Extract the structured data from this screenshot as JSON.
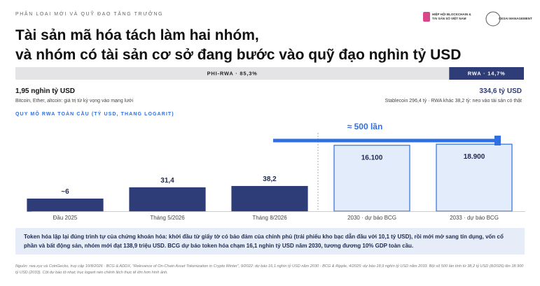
{
  "header": {
    "kicker": "PHÂN LOẠI MỚI VÀ QUỸ ĐẠO TĂNG TRƯỞNG",
    "logos": [
      "HIỆP HỘI BLOCKCHAIN & TÀI SẢN SỐ VIỆT NAM",
      "CESAI MANAGEMENT"
    ],
    "title_lines": [
      "Tài sản mã hóa tách làm hai nhóm,",
      "và nhóm có tài sản cơ sở đang bước vào quỹ đạo nghìn tỷ USD"
    ]
  },
  "share_bar": {
    "segments": [
      {
        "label": "PHI-RWA · 85,3%",
        "value": 85.3,
        "color": "#e4e4e6"
      },
      {
        "label": "RWA · 14,7%",
        "value": 14.7,
        "color": "#2e3d78"
      }
    ]
  },
  "left_stat": {
    "value": "1,95 nghìn tỷ USD",
    "note": "Bitcoin, Ether, altcoin: giá trị từ kỳ vọng vào mạng lưới"
  },
  "right_stat": {
    "value": "334,6 tỷ USD",
    "note": "Stablecoin 296,4 tỷ · RWA khác 38,2 tỷ: neo vào tài sản có thật"
  },
  "chart_data": {
    "type": "bar",
    "title": "QUY MÔ RWA TOÀN CẦU (TỶ USD, THANG LOGARIT)",
    "categories": [
      "Đầu 2025",
      "Tháng 5/2026",
      "Tháng 8/2026",
      "2030 · dự báo BCG",
      "2033 · dự báo BCG"
    ],
    "values": [
      6,
      31.4,
      38.2,
      16100,
      18900
    ],
    "value_labels": [
      "~6",
      "31,4",
      "38,2",
      "16.100",
      "18.900"
    ],
    "colors": [
      "#2e3d78",
      "#2e3d78",
      "#2e3d78",
      "#e3ecfb",
      "#e3ecfb"
    ],
    "edge_colors": [
      "#2e3d78",
      "#2e3d78",
      "#2e3d78",
      "#2f6fe0",
      "#2f6fe0"
    ],
    "log_scale": true,
    "ylim": [
      1,
      100000
    ],
    "annotation": "≈ 500 lần",
    "annotation_color": "#2f6fe0"
  },
  "callout": "Token hóa lặp lại đúng trình tự của chứng khoán hóa: khởi đầu từ giấy tờ có bảo đảm của chính phủ (trái phiếu kho bạc dẫn đầu với 10,1 tỷ USD), rồi mới mở sang tín dụng, vốn cổ phần và bất động sản, nhóm mới đạt 138,9 triệu USD. BCG dự báo token hóa chạm 16,1 nghìn tỷ USD năm 2030, tương đương 10% GDP toàn cầu.",
  "footnote": "Nguồn: rwa.xyz và CoinGecko, truy cập 10/8/2026 · BCG & ADDX, “Relevance of On-Chain Asset Tokenization in Crypto Winter”, 9/2022: dự báo 16,1 nghìn tỷ USD năm 2030 · BCG & Ripple, 4/2025: dự báo 18,9 nghìn tỷ USD năm 2033. Bội số 500 lần tính từ 38,2 tỷ USD (8/2026) lên 18.900 tỷ USD (2033). Cột dự báo tô nhạt; trục logarit nén chênh lệch thực tế lớn hơn hình ảnh."
}
